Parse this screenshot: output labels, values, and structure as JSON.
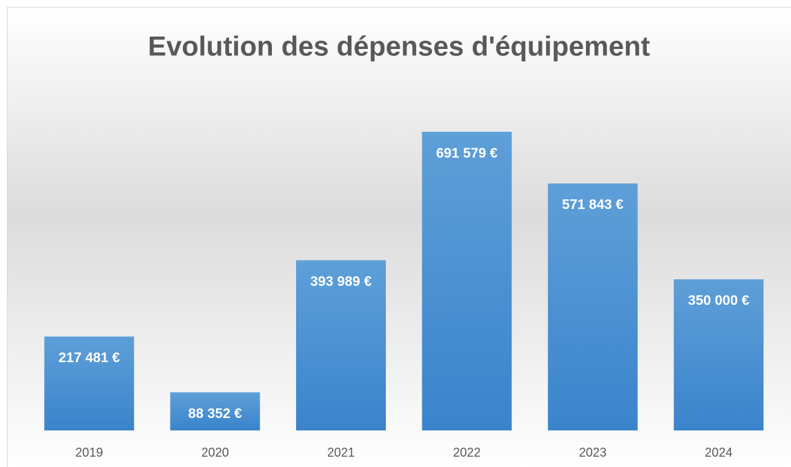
{
  "chart_data": {
    "type": "bar",
    "title": "Evolution des dépenses d'équipement",
    "categories": [
      "2019",
      "2020",
      "2021",
      "2022",
      "2023",
      "2024"
    ],
    "values": [
      217481,
      88352,
      393989,
      691579,
      571843,
      350000
    ],
    "value_labels": [
      "217 481 €",
      "88 352 €",
      "393 989 €",
      "691 579 €",
      "571 843 €",
      "350 000 €"
    ],
    "color": "#4a8fd4"
  }
}
